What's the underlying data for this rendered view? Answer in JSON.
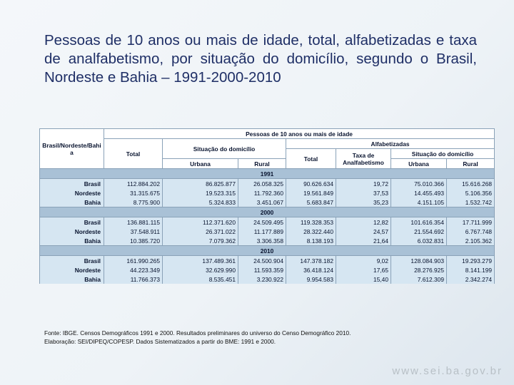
{
  "title": "Pessoas de 10 anos ou mais de idade, total, alfabetizadas e taxa de analfabetismo, por situação do domicílio, segundo o Brasil, Nordeste e Bahia – 1991-2000-2010",
  "table": {
    "header": {
      "region": "Brasil/Nordeste/Bahia",
      "group": "Pessoas de 10 anos ou mais de idade",
      "total": "Total",
      "situation": "Situação do domicílio",
      "literate": "Alfabetizadas",
      "literate_total": "Total",
      "rate": "Taxa de Analfabetismo",
      "literate_situation": "Situação do domicílio",
      "urban": "Urbana",
      "rural": "Rural",
      "literate_urban": "Urbana",
      "literate_rural": "Rural"
    },
    "sections": [
      {
        "year": "1991",
        "rows": [
          [
            "Brasil",
            "112.884.202",
            "86.825.877",
            "26.058.325",
            "90.626.634",
            "19,72",
            "75.010.366",
            "15.616.268"
          ],
          [
            "Nordeste",
            "31.315.675",
            "19.523.315",
            "11.792.360",
            "19.561.849",
            "37,53",
            "14.455.493",
            "5.106.356"
          ],
          [
            "Bahia",
            "8.775.900",
            "5.324.833",
            "3.451.067",
            "5.683.847",
            "35,23",
            "4.151.105",
            "1.532.742"
          ]
        ]
      },
      {
        "year": "2000",
        "rows": [
          [
            "Brasil",
            "136.881.115",
            "112.371.620",
            "24.509.495",
            "119.328.353",
            "12,82",
            "101.616.354",
            "17.711.999"
          ],
          [
            "Nordeste",
            "37.548.911",
            "26.371.022",
            "11.177.889",
            "28.322.440",
            "24,57",
            "21.554.692",
            "6.767.748"
          ],
          [
            "Bahia",
            "10.385.720",
            "7.079.362",
            "3.306.358",
            "8.138.193",
            "21,64",
            "6.032.831",
            "2.105.362"
          ]
        ]
      },
      {
        "year": "2010",
        "rows": [
          [
            "Brasil",
            "161.990.265",
            "137.489.361",
            "24.500.904",
            "147.378.182",
            "9,02",
            "128.084.903",
            "19.293.279"
          ],
          [
            "Nordeste",
            "44.223.349",
            "32.629.990",
            "11.593.359",
            "36.418.124",
            "17,65",
            "28.276.925",
            "8.141.199"
          ],
          [
            "Bahia",
            "11.766.373",
            "8.535.451",
            "3.230.922",
            "9.954.583",
            "15,40",
            "7.612.309",
            "2.342.274"
          ]
        ]
      }
    ]
  },
  "notes": [
    "Fonte: IBGE. Censos Demográficos 1991 e 2000. Resultados preliminares do universo do Censo Demográfico 2010.",
    "Elaboração: SEI/DIPEQ/COPESP. Dados Sistematizados a partir do BME: 1991 e 2000."
  ],
  "footer": {
    "url": "www.sei.ba.gov.br"
  }
}
